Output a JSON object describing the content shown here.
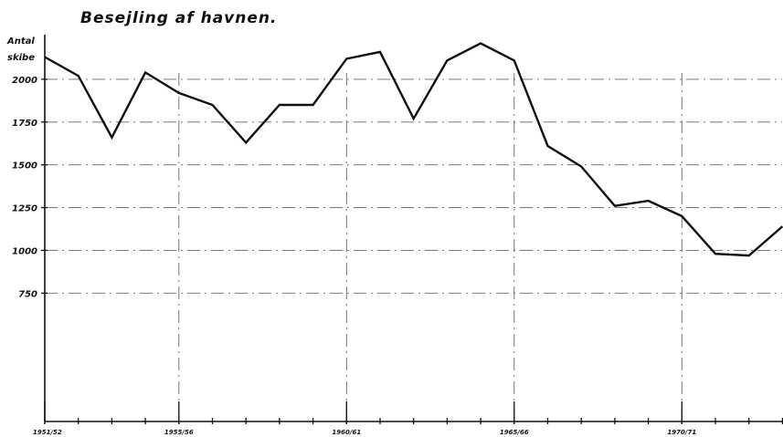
{
  "chart_data": {
    "type": "line",
    "title": "Besejling af havnen.",
    "ylabel": "Antal skibe",
    "xlabel": "",
    "ylim": [
      0,
      2250
    ],
    "grid": true,
    "yticks": [
      750,
      1000,
      1250,
      1500,
      1750,
      2000
    ],
    "ytick_labels": [
      "750",
      "1000",
      "1250",
      "1500",
      "1750",
      "2000"
    ],
    "xtick_labels": [
      {
        "label": "1951/52",
        "index": 0
      },
      {
        "label": "1955/56",
        "index": 4
      },
      {
        "label": "1960/61",
        "index": 9
      },
      {
        "label": "1965/66",
        "index": 14
      },
      {
        "label": "1970/71",
        "index": 19
      }
    ],
    "x": [
      "1951/52",
      "1952/53",
      "1953/54",
      "1954/55",
      "1955/56",
      "1956/57",
      "1957/58",
      "1958/59",
      "1959/60",
      "1960/61",
      "1961/62",
      "1962/63",
      "1963/64",
      "1964/65",
      "1965/66",
      "1966/67",
      "1967/68",
      "1968/69",
      "1969/70",
      "1970/71",
      "1971/72",
      "1972/73",
      "1973/74"
    ],
    "series": [
      {
        "values": [
          2130,
          2020,
          1660,
          2040,
          1920,
          1850,
          1630,
          1850,
          1850,
          2120,
          2160,
          1770,
          2110,
          2210,
          2110,
          1610,
          1490,
          1260,
          1290,
          1200,
          980,
          970,
          1140
        ]
      }
    ]
  }
}
